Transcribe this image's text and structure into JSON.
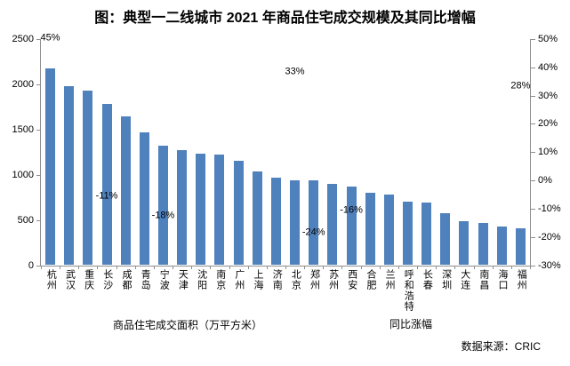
{
  "chart_data": {
    "type": "bar",
    "title": "图：典型一二线城市 2021 年商品住宅成交规模及其同比增幅",
    "categories": [
      "杭州",
      "武汉",
      "重庆",
      "长沙",
      "成都",
      "青岛",
      "宁波",
      "天津",
      "沈阳",
      "南京",
      "广州",
      "上海",
      "济南",
      "北京",
      "郑州",
      "苏州",
      "西安",
      "合肥",
      "兰州",
      "呼和浩特",
      "长春",
      "深圳",
      "大连",
      "南昌",
      "海口",
      "福州"
    ],
    "series": [
      {
        "name": "商品住宅成交面积（万平方米）",
        "type": "bar",
        "axis": "left",
        "color": "#4F81BD",
        "values": [
          2180,
          1975,
          1930,
          1780,
          1650,
          1470,
          1320,
          1270,
          1235,
          1225,
          1155,
          1035,
          965,
          940,
          935,
          900,
          870,
          800,
          780,
          705,
          690,
          575,
          485,
          465,
          425,
          405
        ]
      },
      {
        "name": "同比涨幅",
        "type": "line",
        "axis": "right",
        "visible_labels": [
          {
            "category": "杭州",
            "value": 45,
            "label": "45%"
          },
          {
            "category": "长沙",
            "value": -11,
            "label": "-11%"
          },
          {
            "category": "宁波",
            "value": -18,
            "label": "-18%"
          },
          {
            "category": "北京",
            "value": 33,
            "label": "33%"
          },
          {
            "category": "郑州",
            "value": -24,
            "label": "-24%"
          },
          {
            "category": "西安",
            "value": -16,
            "label": "-16%"
          },
          {
            "category": "福州",
            "value": 28,
            "label": "28%"
          }
        ]
      }
    ],
    "left_axis": {
      "min": 0,
      "max": 2500,
      "ticks": [
        2500,
        2000,
        1500,
        1000,
        500,
        0
      ]
    },
    "right_axis": {
      "min": -30,
      "max": 50,
      "unit": "%",
      "ticks": [
        50,
        40,
        30,
        20,
        10,
        0,
        -10,
        -20,
        -30
      ]
    },
    "grid": false,
    "legend_position": "bottom"
  },
  "source_note": "数据来源：CRIC"
}
